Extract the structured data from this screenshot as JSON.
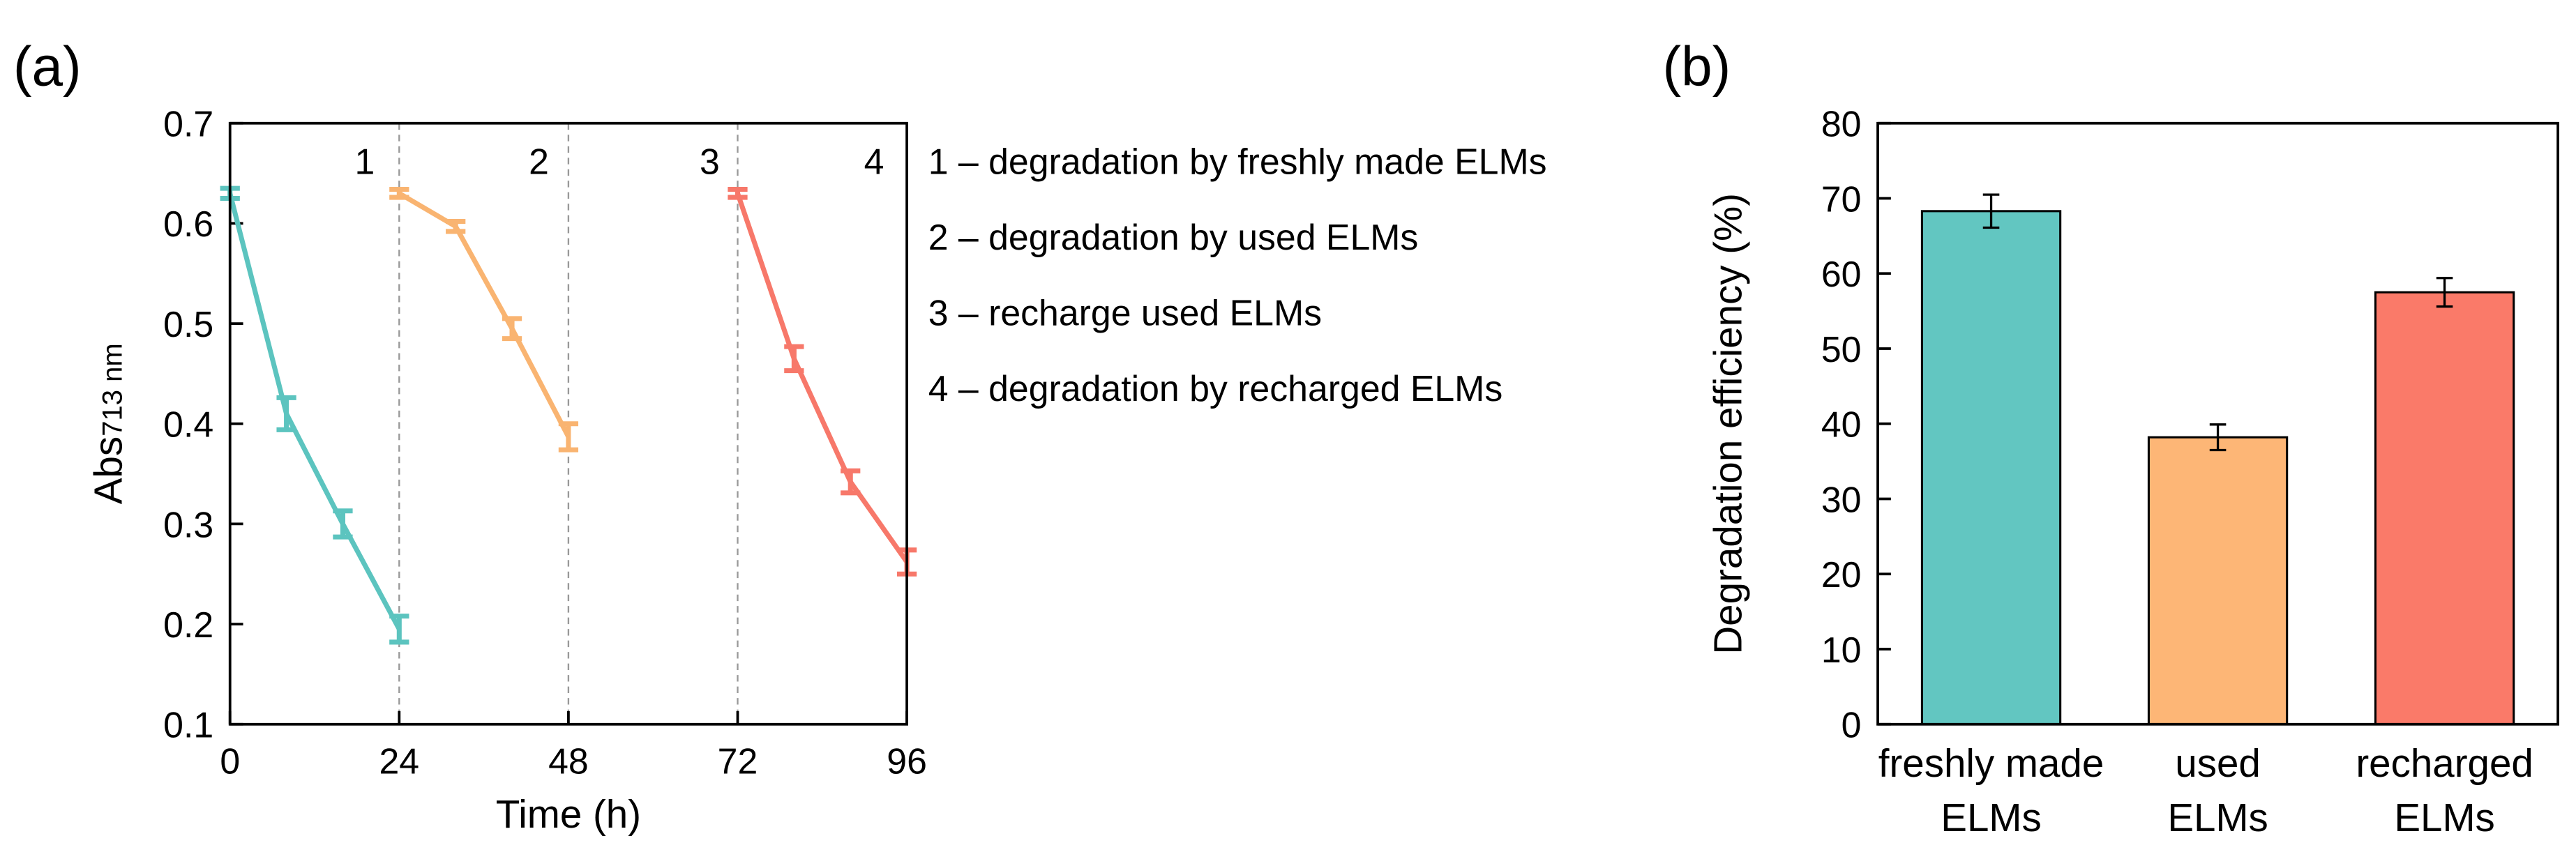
{
  "chart_data": [
    {
      "type": "line",
      "panel_label": "(a)",
      "xlabel": "Time (h)",
      "ylabel": "Abs",
      "ylabel_sub": "713 nm",
      "xlim": [
        0,
        96
      ],
      "xticks": [
        0,
        24,
        48,
        72,
        96
      ],
      "ylim": [
        0.1,
        0.7
      ],
      "yticks": [
        0.1,
        0.2,
        0.3,
        0.4,
        0.5,
        0.6,
        0.7
      ],
      "vlines": [
        24,
        48,
        72
      ],
      "interval_labels": [
        "1",
        "2",
        "3",
        "4"
      ],
      "legend": [
        "1 – degradation by freshly made ELMs",
        "2 – degradation by used ELMs",
        "3 – recharge used ELMs",
        "4 – degradation by recharged ELMs"
      ],
      "series": [
        {
          "color": "#5cc4bf",
          "x": [
            0,
            8,
            16,
            24
          ],
          "values": [
            0.63,
            0.41,
            0.3,
            0.195
          ],
          "errors": [
            0.005,
            0.016,
            0.013,
            0.013
          ]
        },
        {
          "color": "#f9b471",
          "x": [
            24,
            32,
            40,
            48
          ],
          "values": [
            0.63,
            0.597,
            0.495,
            0.387
          ],
          "errors": [
            0.004,
            0.005,
            0.01,
            0.013
          ]
        },
        {
          "color": "#f7786a",
          "x": [
            72,
            80,
            88,
            96
          ],
          "values": [
            0.63,
            0.465,
            0.342,
            0.262
          ],
          "errors": [
            0.004,
            0.012,
            0.011,
            0.012
          ]
        }
      ]
    },
    {
      "type": "bar",
      "panel_label": "(b)",
      "ylabel": "Degradation efficiency (%)",
      "ylim": [
        0,
        80
      ],
      "yticks": [
        0,
        10,
        20,
        30,
        40,
        50,
        60,
        70,
        80
      ],
      "categories": [
        [
          "freshly made",
          "ELMs"
        ],
        [
          "used",
          "ELMs"
        ],
        [
          "recharged",
          "ELMs"
        ]
      ],
      "values": [
        68.3,
        38.2,
        57.5
      ],
      "errors": [
        2.2,
        1.7,
        1.9
      ],
      "colors": [
        "#62c6c1",
        "#fdb676",
        "#fa7a69"
      ]
    }
  ]
}
